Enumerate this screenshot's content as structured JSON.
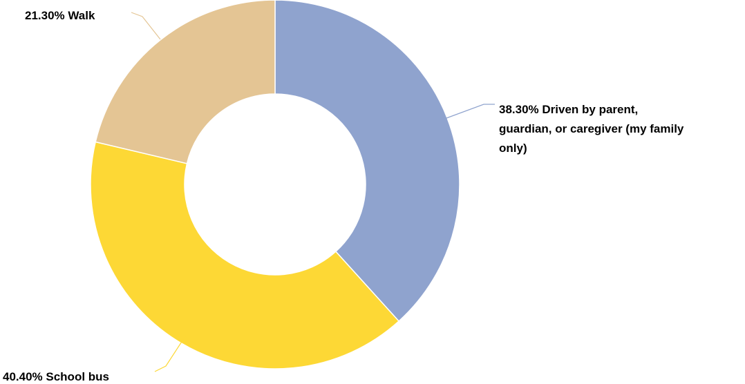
{
  "chart_data": {
    "type": "pie",
    "donut": true,
    "slices": [
      {
        "label": "Driven by parent, guardian, or caregiver (my family only)",
        "percent_text": "38.30%",
        "value": 38.3,
        "color": "#8fa3ce",
        "label_lines": [
          "38.30% Driven by parent,",
          "guardian, or caregiver (my family",
          "only)"
        ]
      },
      {
        "label": "School bus",
        "percent_text": "40.40%",
        "value": 40.4,
        "color": "#fdd835",
        "label_lines": [
          "40.40% School bus"
        ]
      },
      {
        "label": "Walk",
        "percent_text": "21.30%",
        "value": 21.3,
        "color": "#e4c594",
        "label_lines": [
          "21.30% Walk"
        ]
      }
    ],
    "legend": "none",
    "start_angle": "top, clockwise"
  }
}
